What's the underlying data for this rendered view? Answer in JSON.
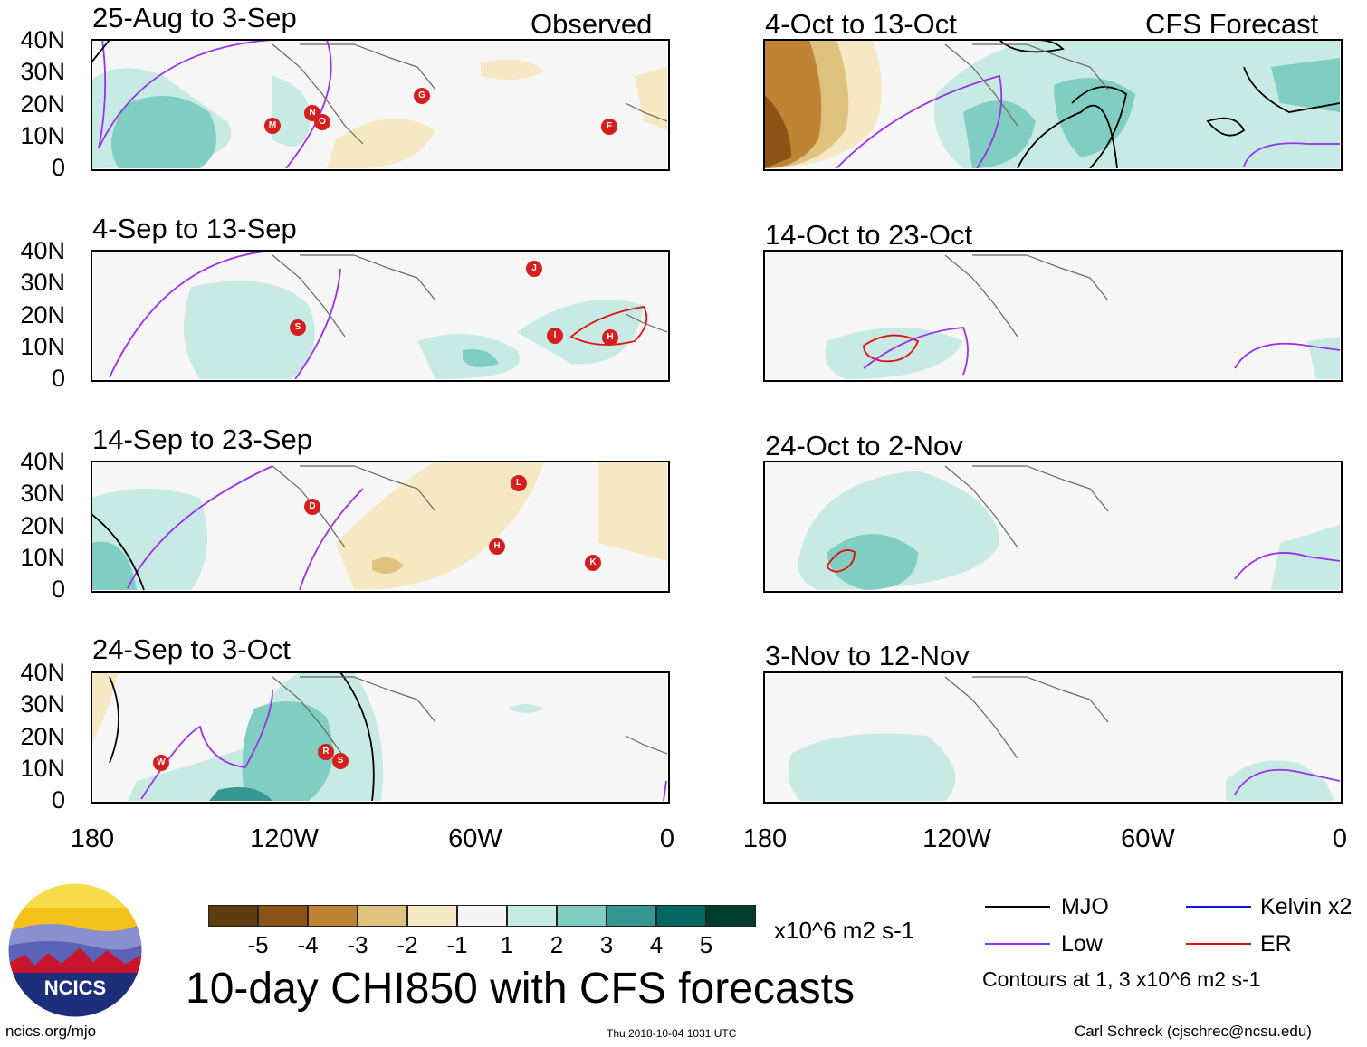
{
  "header": {
    "left_label": "Observed",
    "right_label": "CFS Forecast"
  },
  "panels_left": [
    {
      "title": "25-Aug to 3-Sep"
    },
    {
      "title": "4-Sep to 13-Sep"
    },
    {
      "title": "14-Sep to 23-Sep"
    },
    {
      "title": "24-Sep to 3-Oct"
    }
  ],
  "panels_right": [
    {
      "title": "4-Oct to 13-Oct"
    },
    {
      "title": "14-Oct to 23-Oct"
    },
    {
      "title": "24-Oct to 2-Nov"
    },
    {
      "title": "3-Nov to 12-Nov"
    }
  ],
  "y_axis": [
    "40N",
    "30N",
    "20N",
    "10N",
    "0"
  ],
  "x_axis": [
    "180",
    "120W",
    "60W",
    "0"
  ],
  "storms": {
    "p1": [
      "M",
      "N",
      "O",
      "G",
      "F"
    ],
    "p2": [
      "J",
      "I",
      "H",
      "S"
    ],
    "p3": [
      "L",
      "D",
      "H",
      "K"
    ],
    "p4": [
      "W",
      "R",
      "S"
    ]
  },
  "colorbar": {
    "colors": [
      "#5e3c0f",
      "#8b5315",
      "#bf8433",
      "#dfc27d",
      "#f6e8c3",
      "#f5f5f5",
      "#c7eae5",
      "#80cdc1",
      "#35978f",
      "#01665e",
      "#003c30"
    ],
    "labels": [
      "-5",
      "-4",
      "-3",
      "-2",
      "-1",
      "1",
      "2",
      "3",
      "4",
      "5"
    ],
    "units": "x10^6 m2 s-1"
  },
  "legend": {
    "mjo": {
      "label": "MJO",
      "color": "#000000"
    },
    "kelvin": {
      "label": "Kelvin x2",
      "color": "#1010e0"
    },
    "low": {
      "label": "Low",
      "color": "#9b30e8"
    },
    "er": {
      "label": "ER",
      "color": "#e01010"
    },
    "note": "Contours at 1, 3 x10^6 m2 s-1"
  },
  "logo": {
    "text": "NCICS"
  },
  "main_title": "10-day CHI850 with CFS forecasts",
  "footer": {
    "url": "ncics.org/mjo",
    "timestamp": "Thu 2018-10-04 1031 UTC",
    "author": "Carl Schreck (cjschrec@ncsu.edu)"
  }
}
